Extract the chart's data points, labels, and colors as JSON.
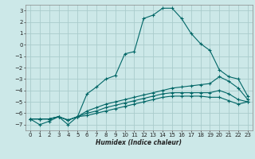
{
  "xlabel": "Humidex (Indice chaleur)",
  "background_color": "#cce8e8",
  "grid_color": "#aacccc",
  "line_color": "#006666",
  "xlim": [
    -0.5,
    23.5
  ],
  "ylim": [
    -7.5,
    3.5
  ],
  "yticks": [
    -7,
    -6,
    -5,
    -4,
    -3,
    -2,
    -1,
    0,
    1,
    2,
    3
  ],
  "xticks": [
    0,
    1,
    2,
    3,
    4,
    5,
    6,
    7,
    8,
    9,
    10,
    11,
    12,
    13,
    14,
    15,
    16,
    17,
    18,
    19,
    20,
    21,
    22,
    23
  ],
  "lines": [
    {
      "x": [
        0,
        1,
        2,
        3,
        4,
        5,
        6,
        7,
        8,
        9,
        10,
        11,
        12,
        13,
        14,
        15,
        16,
        17,
        18,
        19,
        20,
        21,
        22,
        23
      ],
      "y": [
        -6.5,
        -7.0,
        -6.7,
        -6.3,
        -7.0,
        -6.3,
        -4.3,
        -3.7,
        -3.0,
        -2.7,
        -0.8,
        -0.6,
        2.3,
        2.6,
        3.2,
        3.2,
        2.3,
        1.0,
        0.1,
        -0.5,
        -2.2,
        -2.8,
        -3.0,
        -4.5
      ]
    },
    {
      "x": [
        0,
        1,
        2,
        3,
        4,
        5,
        6,
        7,
        8,
        9,
        10,
        11,
        12,
        13,
        14,
        15,
        16,
        17,
        18,
        19,
        20,
        21,
        22,
        23
      ],
      "y": [
        -6.5,
        -6.5,
        -6.5,
        -6.3,
        -6.6,
        -6.3,
        -5.8,
        -5.5,
        -5.2,
        -5.0,
        -4.8,
        -4.6,
        -4.4,
        -4.2,
        -4.0,
        -3.8,
        -3.7,
        -3.6,
        -3.5,
        -3.4,
        -2.8,
        -3.2,
        -3.8,
        -4.8
      ]
    },
    {
      "x": [
        0,
        1,
        2,
        3,
        4,
        5,
        6,
        7,
        8,
        9,
        10,
        11,
        12,
        13,
        14,
        15,
        16,
        17,
        18,
        19,
        20,
        21,
        22,
        23
      ],
      "y": [
        -6.5,
        -6.5,
        -6.5,
        -6.3,
        -6.6,
        -6.3,
        -6.0,
        -5.8,
        -5.5,
        -5.3,
        -5.1,
        -4.9,
        -4.7,
        -4.5,
        -4.3,
        -4.2,
        -4.2,
        -4.2,
        -4.2,
        -4.2,
        -4.0,
        -4.3,
        -4.8,
        -5.0
      ]
    },
    {
      "x": [
        0,
        1,
        2,
        3,
        4,
        5,
        6,
        7,
        8,
        9,
        10,
        11,
        12,
        13,
        14,
        15,
        16,
        17,
        18,
        19,
        20,
        21,
        22,
        23
      ],
      "y": [
        -6.5,
        -6.5,
        -6.5,
        -6.3,
        -6.6,
        -6.3,
        -6.2,
        -6.0,
        -5.8,
        -5.6,
        -5.4,
        -5.2,
        -5.0,
        -4.8,
        -4.6,
        -4.5,
        -4.5,
        -4.5,
        -4.5,
        -4.6,
        -4.6,
        -4.9,
        -5.2,
        -5.0
      ]
    }
  ]
}
